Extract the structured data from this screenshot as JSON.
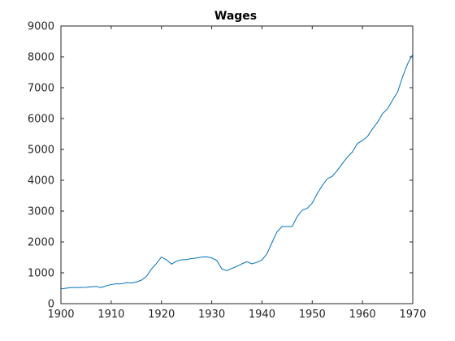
{
  "chart_data": {
    "type": "line",
    "title": "Wages",
    "xlabel": "",
    "ylabel": "",
    "xlim": [
      1900,
      1970
    ],
    "ylim": [
      0,
      9000
    ],
    "xticks": [
      1900,
      1910,
      1920,
      1930,
      1940,
      1950,
      1960,
      1970
    ],
    "yticks": [
      0,
      1000,
      2000,
      3000,
      4000,
      5000,
      6000,
      7000,
      8000,
      9000
    ],
    "grid": false,
    "line_color": "#0072bd",
    "series": [
      {
        "x": [
          1900,
          1901,
          1902,
          1903,
          1904,
          1905,
          1906,
          1907,
          1908,
          1909,
          1910,
          1911,
          1912,
          1913,
          1914,
          1915,
          1916,
          1917,
          1918,
          1919,
          1920,
          1921,
          1922,
          1923,
          1924,
          1925,
          1926,
          1927,
          1928,
          1929,
          1930,
          1931,
          1932,
          1933,
          1934,
          1935,
          1936,
          1937,
          1938,
          1939,
          1940,
          1941,
          1942,
          1943,
          1944,
          1945,
          1946,
          1947,
          1948,
          1949,
          1950,
          1951,
          1952,
          1953,
          1954,
          1955,
          1956,
          1957,
          1958,
          1959,
          1960,
          1961,
          1962,
          1963,
          1964,
          1965,
          1966,
          1967,
          1968,
          1969,
          1970
        ],
        "y": [
          480,
          500,
          520,
          520,
          525,
          530,
          545,
          560,
          520,
          580,
          620,
          640,
          640,
          680,
          670,
          700,
          760,
          880,
          1120,
          1300,
          1510,
          1420,
          1280,
          1380,
          1420,
          1430,
          1460,
          1480,
          1510,
          1520,
          1480,
          1400,
          1130,
          1070,
          1140,
          1210,
          1290,
          1360,
          1290,
          1340,
          1420,
          1620,
          1980,
          2330,
          2500,
          2500,
          2500,
          2820,
          3030,
          3090,
          3260,
          3570,
          3830,
          4050,
          4130,
          4320,
          4540,
          4750,
          4920,
          5190,
          5290,
          5420,
          5670,
          5880,
          6160,
          6320,
          6600,
          6870,
          7360,
          7780,
          8080
        ]
      }
    ]
  }
}
